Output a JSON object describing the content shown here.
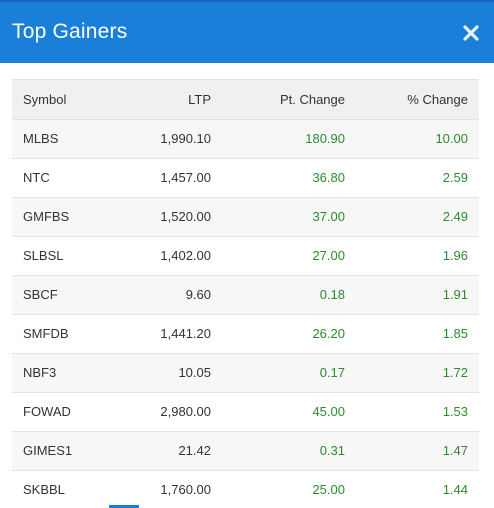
{
  "header": {
    "title": "Top Gainers",
    "close_icon": "close-icon",
    "color": "#1a7fd8"
  },
  "table": {
    "columns": [
      "Symbol",
      "LTP",
      "Pt. Change",
      "% Change"
    ],
    "rows": [
      {
        "symbol": "MLBS",
        "ltp": "1,990.10",
        "pt_change": "180.90",
        "pct_change": "10.00"
      },
      {
        "symbol": "NTC",
        "ltp": "1,457.00",
        "pt_change": "36.80",
        "pct_change": "2.59"
      },
      {
        "symbol": "GMFBS",
        "ltp": "1,520.00",
        "pt_change": "37.00",
        "pct_change": "2.49"
      },
      {
        "symbol": "SLBSL",
        "ltp": "1,402.00",
        "pt_change": "27.00",
        "pct_change": "1.96"
      },
      {
        "symbol": "SBCF",
        "ltp": "9.60",
        "pt_change": "0.18",
        "pct_change": "1.91"
      },
      {
        "symbol": "SMFDB",
        "ltp": "1,441.20",
        "pt_change": "26.20",
        "pct_change": "1.85"
      },
      {
        "symbol": "NBF3",
        "ltp": "10.05",
        "pt_change": "0.17",
        "pct_change": "1.72"
      },
      {
        "symbol": "FOWAD",
        "ltp": "2,980.00",
        "pt_change": "45.00",
        "pct_change": "1.53"
      },
      {
        "symbol": "GIMES1",
        "ltp": "21.42",
        "pt_change": "0.31",
        "pct_change": "1.47"
      },
      {
        "symbol": "SKBBL",
        "ltp": "1,760.00",
        "pt_change": "25.00",
        "pct_change": "1.44"
      }
    ],
    "gain_color": "#2e8b2e"
  }
}
